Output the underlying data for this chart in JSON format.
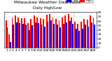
{
  "title": "Milwaukee Weather Dew Point",
  "subtitle": "Daily High/Low",
  "days": [
    "1",
    "2",
    "3",
    "4",
    "5",
    "6",
    "7",
    "8",
    "9",
    "10",
    "11",
    "12",
    "13",
    "14",
    "15",
    "16",
    "17",
    "18",
    "19",
    "20",
    "21",
    "22",
    "23",
    "24",
    "25",
    "26",
    "27",
    "28",
    "29"
  ],
  "high": [
    62,
    30,
    68,
    72,
    68,
    67,
    67,
    55,
    65,
    72,
    68,
    67,
    65,
    74,
    76,
    68,
    65,
    62,
    68,
    72,
    76,
    68,
    58,
    53,
    58,
    65,
    63,
    72,
    68
  ],
  "low": [
    45,
    12,
    52,
    57,
    55,
    53,
    52,
    40,
    50,
    57,
    55,
    52,
    48,
    58,
    62,
    53,
    52,
    45,
    53,
    57,
    60,
    53,
    42,
    38,
    42,
    52,
    48,
    57,
    52
  ],
  "high_color": "#ff0000",
  "low_color": "#0000ff",
  "background_color": "#ffffff",
  "ylim": [
    0,
    80
  ],
  "ytick_values": [
    0,
    10,
    20,
    30,
    40,
    50,
    60,
    70,
    80
  ],
  "ytick_labels": [
    "0",
    "10",
    "20",
    "30",
    "40",
    "50",
    "60",
    "70",
    "80"
  ],
  "title_fontsize": 4.5,
  "subtitle_fontsize": 4.0,
  "tick_fontsize": 3.2,
  "bar_width": 0.42,
  "dashed_after_idx": 22,
  "legend_high": "High",
  "legend_low": "Low"
}
